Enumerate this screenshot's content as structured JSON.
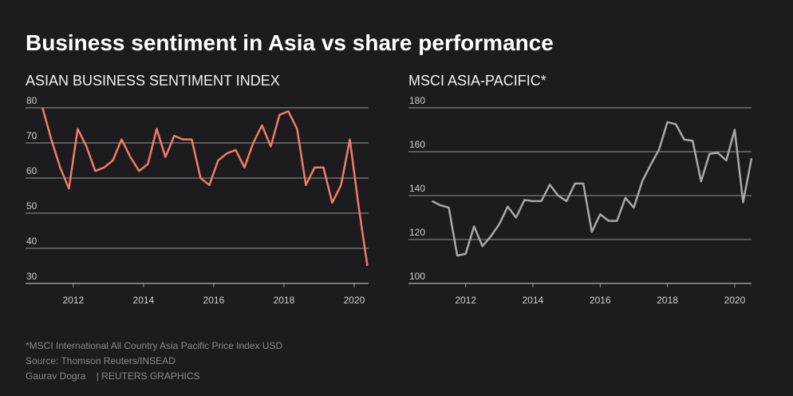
{
  "title": "Business sentiment in Asia vs share performance",
  "footnotes": [
    "*MSCI International All Country Asia Pacific Price Index USD",
    "Source: Thomson Reuters/INSEAD",
    "Gaurav Dogra    | REUTERS GRAPHICS"
  ],
  "chart_data": [
    {
      "type": "line",
      "title": "ASIAN BUSINESS SENTIMENT INDEX",
      "x": [
        2011.125,
        2011.375,
        2011.625,
        2011.875,
        2012.125,
        2012.375,
        2012.625,
        2012.875,
        2013.125,
        2013.375,
        2013.625,
        2013.875,
        2014.125,
        2014.375,
        2014.625,
        2014.875,
        2015.125,
        2015.375,
        2015.625,
        2015.875,
        2016.125,
        2016.375,
        2016.625,
        2016.875,
        2017.125,
        2017.375,
        2017.625,
        2017.875,
        2018.125,
        2018.375,
        2018.625,
        2018.875,
        2019.125,
        2019.375,
        2019.625,
        2019.875,
        2020.125,
        2020.375
      ],
      "series": [
        {
          "name": "Asian business sentiment index",
          "color": "#f07c6a",
          "values": [
            80,
            71,
            63,
            57,
            74,
            69,
            62,
            63,
            65,
            71,
            66,
            62,
            64,
            74,
            66,
            72,
            71,
            71,
            60,
            58,
            65,
            67,
            68,
            63,
            70,
            75,
            69,
            78,
            79,
            74,
            58,
            63,
            63,
            53,
            58,
            71,
            52,
            35
          ]
        }
      ],
      "xlim": [
        2010.64,
        2020.41
      ],
      "xticks": [
        2012,
        2014,
        2016,
        2018,
        2020
      ],
      "ylim": [
        30,
        80
      ],
      "yticks": [
        30,
        40,
        50,
        60,
        70,
        80
      ],
      "grid": true
    },
    {
      "type": "line",
      "title": "MSCI ASIA-PACIFIC*",
      "x": [
        2011,
        2011.25,
        2011.5,
        2011.75,
        2012,
        2012.25,
        2012.5,
        2012.75,
        2013,
        2013.25,
        2013.5,
        2013.75,
        2014,
        2014.25,
        2014.5,
        2014.75,
        2015,
        2015.25,
        2015.5,
        2015.75,
        2016,
        2016.25,
        2016.5,
        2016.75,
        2017,
        2017.25,
        2017.5,
        2017.75,
        2018,
        2018.25,
        2018.5,
        2018.75,
        2019,
        2019.25,
        2019.5,
        2019.75,
        2020,
        2020.25,
        2020.5
      ],
      "series": [
        {
          "name": "MSCI Asia-Pacific",
          "color": "#a8a8a8",
          "values": [
            137.5,
            135.6,
            134.5,
            112.7,
            113.5,
            126,
            117,
            121.5,
            127,
            135,
            130,
            138,
            137.5,
            137.5,
            145,
            140,
            137.5,
            145.5,
            145.5,
            123.5,
            131.5,
            128.5,
            128.5,
            139,
            134.5,
            146.5,
            154,
            161,
            173.5,
            172.5,
            165.5,
            165,
            146.5,
            159,
            159.5,
            156,
            170,
            137,
            157
          ]
        }
      ],
      "xlim": [
        2010.3,
        2020.5
      ],
      "xticks": [
        2012,
        2014,
        2016,
        2018,
        2020
      ],
      "ylim": [
        100,
        180
      ],
      "yticks": [
        100,
        120,
        140,
        160,
        180
      ],
      "grid": true
    }
  ]
}
